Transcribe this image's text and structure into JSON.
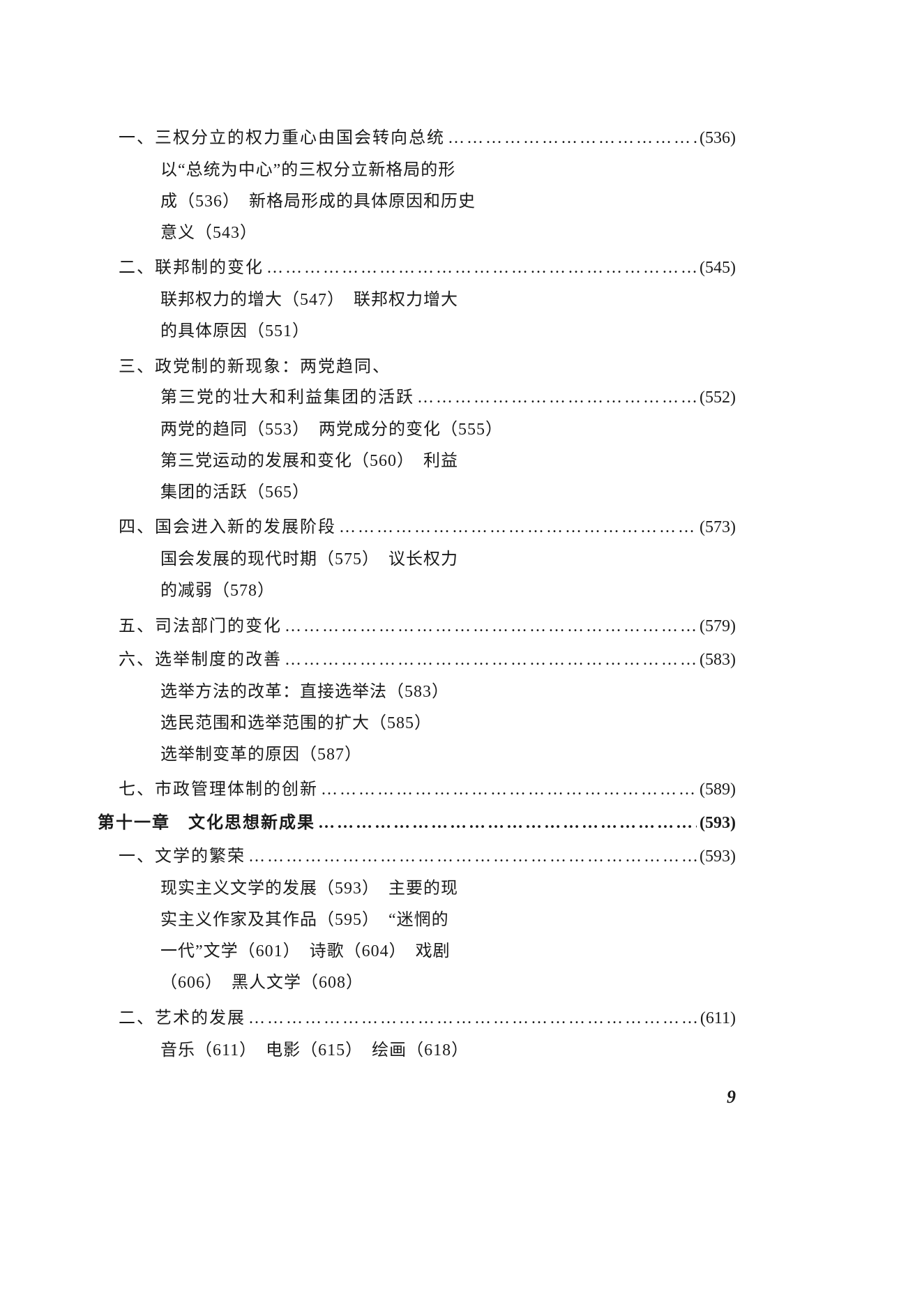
{
  "entries": [
    {
      "type": "section",
      "label": "一、三权分立的权力重心由国会转向总统",
      "pageRef": "(536)",
      "subLines": [
        "以“总统为中心”的三权分立新格局的形",
        "成（536）　新格局形成的具体原因和历史",
        "意义（543）"
      ]
    },
    {
      "type": "section",
      "label": "二、联邦制的变化",
      "pageRef": "(545)",
      "subLines": [
        "联邦权力的增大（547）　联邦权力增大",
        "的具体原因（551）"
      ]
    },
    {
      "type": "section-multi",
      "labelLines": [
        "三、政党制的新现象：两党趋同、",
        "第三党的壮大和利益集团的活跃"
      ],
      "pageRef": "(552)",
      "subLines": [
        "两党的趋同（553）　两党成分的变化（555）",
        "第三党运动的发展和变化（560）　利益",
        "集团的活跃（565）"
      ]
    },
    {
      "type": "section",
      "label": "四、国会进入新的发展阶段",
      "pageRef": "(573)",
      "subLines": [
        "国会发展的现代时期（575）　议长权力",
        "的减弱（578）"
      ]
    },
    {
      "type": "section",
      "label": "五、司法部门的变化",
      "pageRef": "(579)",
      "subLines": []
    },
    {
      "type": "section",
      "label": "六、选举制度的改善",
      "pageRef": "(583)",
      "subLines": [
        "选举方法的改革：直接选举法（583）",
        "选民范围和选举范围的扩大（585）",
        "选举制变革的原因（587）"
      ]
    },
    {
      "type": "section",
      "label": "七、市政管理体制的创新",
      "pageRef": "(589)",
      "subLines": []
    },
    {
      "type": "chapter",
      "label": "第十一章　文化思想新成果",
      "pageRef": "(593)",
      "subLines": []
    },
    {
      "type": "section",
      "label": "一、文学的繁荣",
      "pageRef": "(593)",
      "subLines": [
        "现实主义文学的发展（593）　主要的现",
        "实主义作家及其作品（595）　“迷惘的",
        "一代”文学（601）　诗歌（604）　戏剧",
        "（606）　黑人文学（608）"
      ]
    },
    {
      "type": "section",
      "label": "二、艺术的发展",
      "pageRef": "(611)",
      "subLines": [
        "音乐（611）　电影（615）　绘画（618）"
      ]
    }
  ],
  "pageNumber": "9",
  "dotsFill": "…………………………………………………………………………"
}
